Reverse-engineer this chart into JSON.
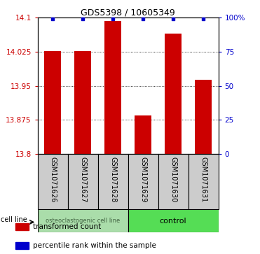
{
  "title": "GDS5398 / 10605349",
  "samples": [
    "GSM1071626",
    "GSM1071627",
    "GSM1071628",
    "GSM1071629",
    "GSM1071630",
    "GSM1071631"
  ],
  "bar_values": [
    14.026,
    14.027,
    14.093,
    13.885,
    14.065,
    13.963
  ],
  "percentile_values": [
    99,
    99,
    99,
    99,
    99,
    99
  ],
  "ylim": [
    13.8,
    14.1
  ],
  "yticks_left": [
    13.8,
    13.875,
    13.95,
    14.025,
    14.1
  ],
  "yticks_right": [
    0,
    25,
    50,
    75,
    100
  ],
  "bar_color": "#cc0000",
  "percentile_color": "#0000cc",
  "bar_width": 0.55,
  "group1_label": "osteoclastogenic cell line",
  "group1_color": "#aaddaa",
  "group2_label": "control",
  "group2_color": "#55dd55",
  "cell_line_label": "cell line",
  "sample_box_color": "#cccccc",
  "legend_items": [
    {
      "label": "transformed count",
      "color": "#cc0000"
    },
    {
      "label": "percentile rank within the sample",
      "color": "#0000cc"
    }
  ],
  "title_fontsize": 9,
  "tick_fontsize": 7.5,
  "label_fontsize": 7,
  "legend_fontsize": 7.5
}
